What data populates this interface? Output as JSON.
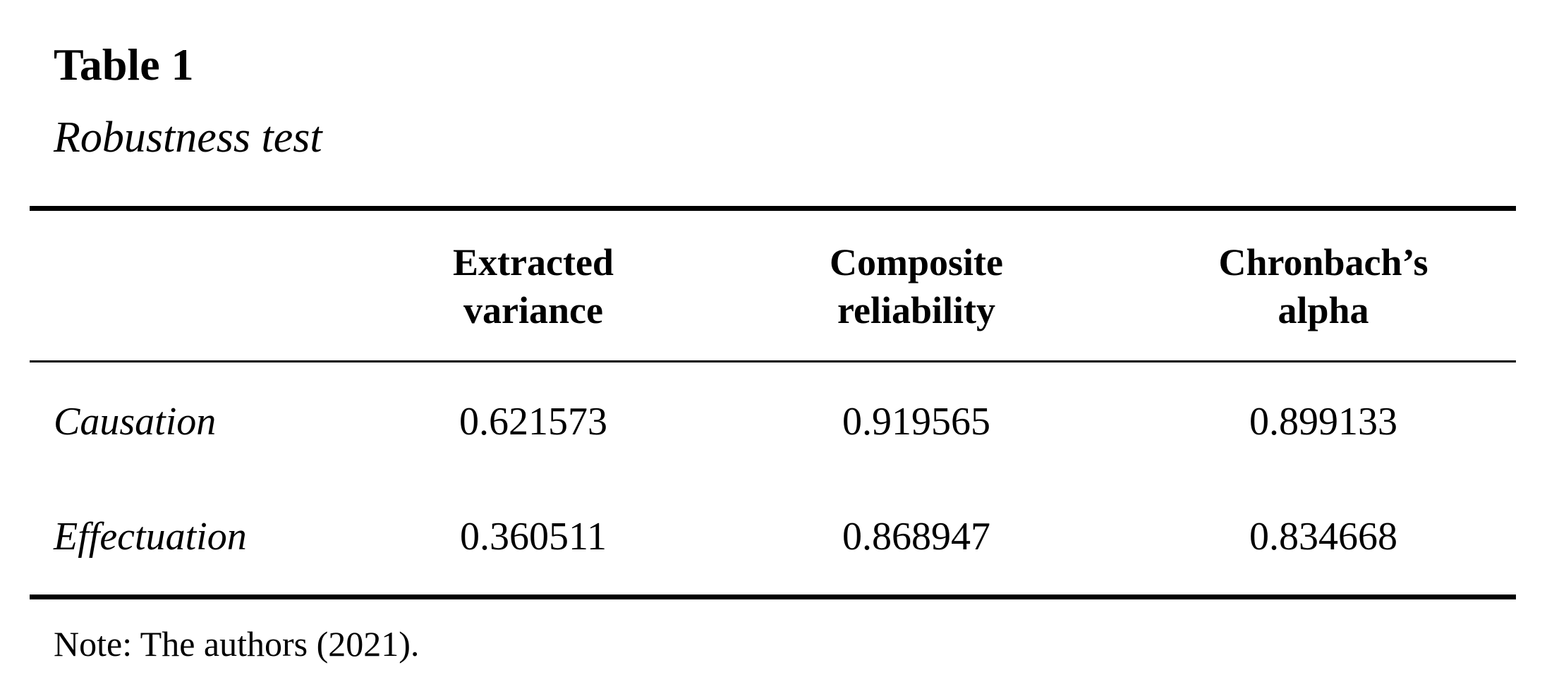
{
  "header": {
    "title": "Table 1",
    "subtitle": "Robustness test"
  },
  "table": {
    "columns": [
      "Extracted variance",
      "Composite reliability",
      "Chronbach’s alpha"
    ],
    "rows": [
      {
        "label": "Causation",
        "values": [
          0.621573,
          0.919565,
          0.899133
        ]
      },
      {
        "label": "Effectuation",
        "values": [
          0.360511,
          0.868947,
          0.834668
        ]
      }
    ]
  },
  "note": "Note: The authors (2021)."
}
